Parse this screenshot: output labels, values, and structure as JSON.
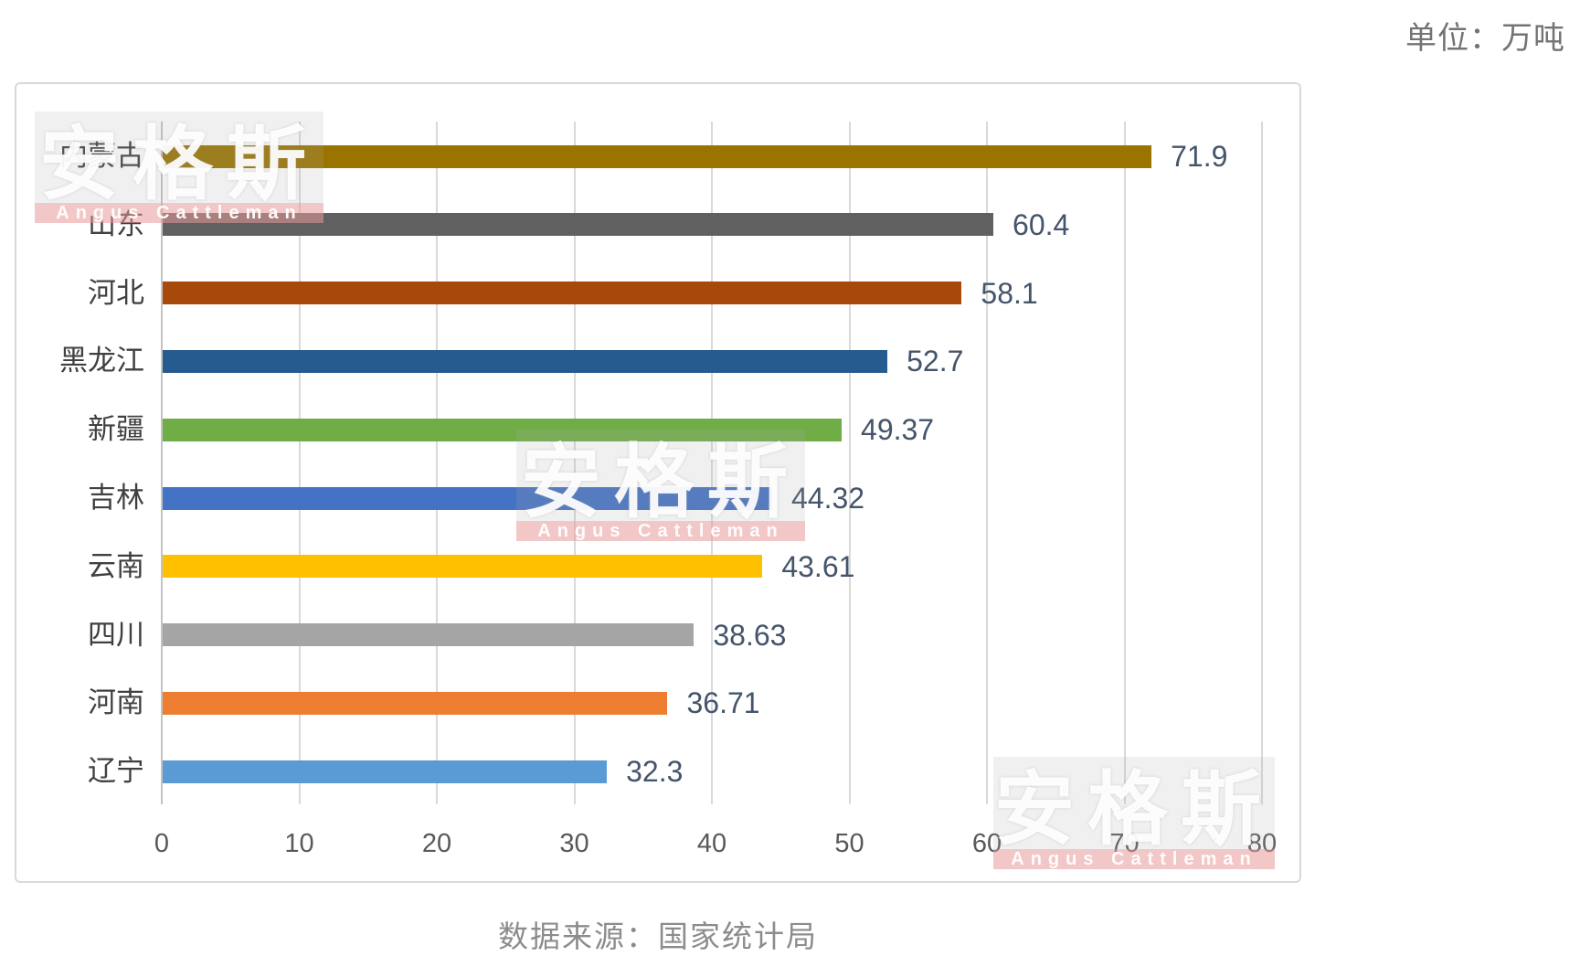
{
  "unit_label": "单位：万吨",
  "source_caption": "数据来源：国家统计局",
  "watermark": {
    "cn": "安格斯",
    "en": "Angus Cattleman"
  },
  "chart_data": {
    "type": "bar",
    "orientation": "horizontal",
    "unit": "万吨",
    "categories": [
      "内蒙古",
      "山东",
      "河北",
      "黑龙江",
      "新疆",
      "吉林",
      "云南",
      "四川",
      "河南",
      "辽宁"
    ],
    "values": [
      71.9,
      60.4,
      58.1,
      52.7,
      49.37,
      44.32,
      43.61,
      38.63,
      36.71,
      32.3
    ],
    "value_labels": [
      "71.9",
      "60.4",
      "58.1",
      "52.7",
      "49.37",
      "44.32",
      "43.61",
      "38.63",
      "36.71",
      "32.3"
    ],
    "bar_colors": [
      "#9A7400",
      "#606060",
      "#A7490B",
      "#265B8F",
      "#70AD47",
      "#4472C4",
      "#FFC000",
      "#A5A5A5",
      "#ED7D31",
      "#5B9BD5"
    ],
    "xlim": [
      0,
      80
    ],
    "x_ticks": [
      0,
      10,
      20,
      30,
      40,
      50,
      60,
      70,
      80
    ],
    "grid": true,
    "legend": false,
    "title": "",
    "value_label_color": "#44546A",
    "gridline_color": "#D9D9D9"
  }
}
